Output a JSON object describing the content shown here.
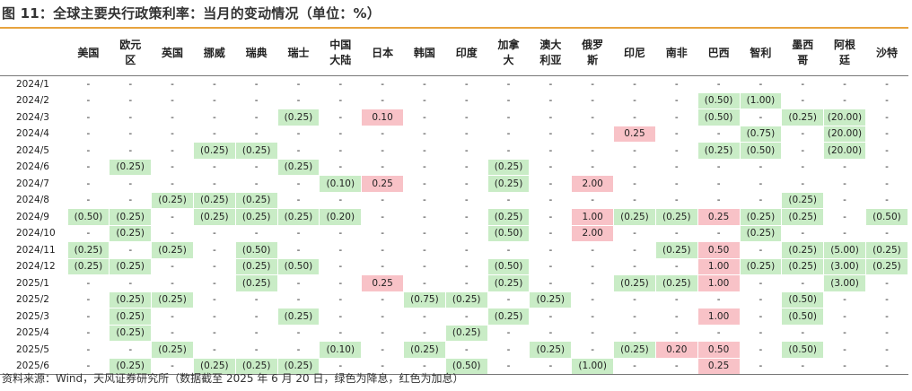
{
  "title": "图 11：全球主要央行政策利率：当月的变动情况（单位：%）",
  "columns": [
    "美国",
    "欧元区",
    "英国",
    "挪威",
    "瑞典",
    "瑞士",
    "中国大陆",
    "日本",
    "韩国",
    "印度",
    "加拿大",
    "澳大利亚",
    "俄罗斯",
    "印尼",
    "南非",
    "巴西",
    "智利",
    "墨西哥",
    "阿根廷",
    "沙特"
  ],
  "rows": [
    {
      "date": "2024/1",
      "cells": [
        "-",
        "-",
        "-",
        "-",
        "-",
        "-",
        "-",
        "-",
        "-",
        "-",
        "-",
        "-",
        "-",
        "-",
        "-",
        "-",
        "-",
        "-",
        "-",
        "-"
      ]
    },
    {
      "date": "2024/2",
      "cells": [
        "-",
        "-",
        "-",
        "-",
        "-",
        "-",
        "-",
        "-",
        "-",
        "-",
        "-",
        "-",
        "-",
        "-",
        "-",
        "(0.50)",
        "(1.00)",
        "-",
        "-",
        "-"
      ]
    },
    {
      "date": "2024/3",
      "cells": [
        "-",
        "-",
        "-",
        "-",
        "-",
        "(0.25)",
        "-",
        "0.10",
        "-",
        "-",
        "-",
        "-",
        "-",
        "-",
        "-",
        "(0.50)",
        "-",
        "(0.25)",
        "(20.00)",
        "-"
      ]
    },
    {
      "date": "2024/4",
      "cells": [
        "-",
        "-",
        "-",
        "-",
        "-",
        "-",
        "-",
        "-",
        "-",
        "-",
        "-",
        "-",
        "-",
        "0.25",
        "-",
        "-",
        "(0.75)",
        "-",
        "(20.00)",
        "-"
      ]
    },
    {
      "date": "2024/5",
      "cells": [
        "-",
        "-",
        "-",
        "(0.25)",
        "(0.25)",
        "-",
        "-",
        "-",
        "-",
        "-",
        "-",
        "-",
        "-",
        "-",
        "-",
        "(0.25)",
        "(0.50)",
        "-",
        "(20.00)",
        "-"
      ]
    },
    {
      "date": "2024/6",
      "cells": [
        "-",
        "(0.25)",
        "-",
        "-",
        "-",
        "(0.25)",
        "-",
        "-",
        "-",
        "-",
        "(0.25)",
        "-",
        "-",
        "-",
        "-",
        "-",
        "-",
        "-",
        "-",
        "-"
      ]
    },
    {
      "date": "2024/7",
      "cells": [
        "-",
        "-",
        "-",
        "-",
        "-",
        "-",
        "(0.10)",
        "0.25",
        "-",
        "-",
        "(0.25)",
        "-",
        "2.00",
        "-",
        "-",
        "-",
        "-",
        "-",
        "-",
        "-"
      ]
    },
    {
      "date": "2024/8",
      "cells": [
        "-",
        "-",
        "(0.25)",
        "(0.25)",
        "(0.25)",
        "-",
        "-",
        "-",
        "-",
        "-",
        "-",
        "-",
        "-",
        "-",
        "-",
        "-",
        "-",
        "(0.25)",
        "-",
        "-"
      ]
    },
    {
      "date": "2024/9",
      "cells": [
        "(0.50)",
        "(0.25)",
        "-",
        "(0.25)",
        "(0.25)",
        "(0.25)",
        "(0.20)",
        "-",
        "-",
        "-",
        "(0.25)",
        "-",
        "1.00",
        "(0.25)",
        "(0.25)",
        "0.25",
        "(0.25)",
        "(0.25)",
        "-",
        "(0.50)"
      ]
    },
    {
      "date": "2024/10",
      "cells": [
        "-",
        "(0.25)",
        "-",
        "-",
        "-",
        "-",
        "-",
        "-",
        "-",
        "-",
        "(0.50)",
        "-",
        "2.00",
        "-",
        "-",
        "-",
        "(0.25)",
        "-",
        "-",
        "-"
      ]
    },
    {
      "date": "2024/11",
      "cells": [
        "(0.25)",
        "-",
        "(0.25)",
        "-",
        "(0.50)",
        "-",
        "-",
        "-",
        "-",
        "-",
        "-",
        "-",
        "-",
        "-",
        "(0.25)",
        "0.50",
        "-",
        "(0.25)",
        "(5.00)",
        "(0.25)"
      ]
    },
    {
      "date": "2024/12",
      "cells": [
        "(0.25)",
        "(0.25)",
        "-",
        "-",
        "(0.25)",
        "(0.50)",
        "-",
        "-",
        "-",
        "-",
        "(0.50)",
        "-",
        "-",
        "-",
        "-",
        "1.00",
        "(0.25)",
        "(0.25)",
        "(3.00)",
        "(0.25)"
      ]
    },
    {
      "date": "2025/1",
      "cells": [
        "-",
        "-",
        "-",
        "-",
        "(0.25)",
        "-",
        "-",
        "0.25",
        "-",
        "-",
        "(0.25)",
        "-",
        "-",
        "(0.25)",
        "(0.25)",
        "1.00",
        "-",
        "-",
        "(3.00)",
        "-"
      ]
    },
    {
      "date": "2025/2",
      "cells": [
        "-",
        "(0.25)",
        "(0.25)",
        "-",
        "-",
        "-",
        "-",
        "-",
        "(0.75)",
        "(0.25)",
        "-",
        "(0.25)",
        "-",
        "-",
        "-",
        "-",
        "-",
        "(0.50)",
        "-",
        "-"
      ]
    },
    {
      "date": "2025/3",
      "cells": [
        "-",
        "(0.25)",
        "-",
        "-",
        "-",
        "(0.25)",
        "-",
        "-",
        "-",
        "-",
        "(0.25)",
        "-",
        "-",
        "-",
        "-",
        "1.00",
        "-",
        "(0.50)",
        "-",
        "-"
      ]
    },
    {
      "date": "2025/4",
      "cells": [
        "-",
        "(0.25)",
        "-",
        "-",
        "-",
        "-",
        "-",
        "-",
        "-",
        "(0.25)",
        "-",
        "-",
        "-",
        "-",
        "-",
        "-",
        "-",
        "-",
        "-",
        "-"
      ]
    },
    {
      "date": "2025/5",
      "cells": [
        "-",
        "-",
        "(0.25)",
        "-",
        "-",
        "-",
        "(0.10)",
        "-",
        "(0.25)",
        "-",
        "-",
        "(0.25)",
        "-",
        "(0.25)",
        "0.20",
        "0.50",
        "-",
        "(0.50)",
        "-",
        "-"
      ]
    },
    {
      "date": "2025/6",
      "cells": [
        "-",
        "(0.25)",
        "-",
        "(0.25)",
        "(0.25)",
        "(0.25)",
        "-",
        "-",
        "-",
        "(0.50)",
        "-",
        "-",
        "(1.00)",
        "-",
        "-",
        "0.25",
        "-",
        "-",
        "-",
        "-"
      ]
    }
  ],
  "colors": {
    "cut": "#c9ecc6",
    "hike": "#f8c2c7",
    "rule": "#e8a33e"
  },
  "footer": "资料来源：Wind，天风证券研究所（数据截至 2025 年 6 月 20 日，绿色为降息，红色为加息）"
}
